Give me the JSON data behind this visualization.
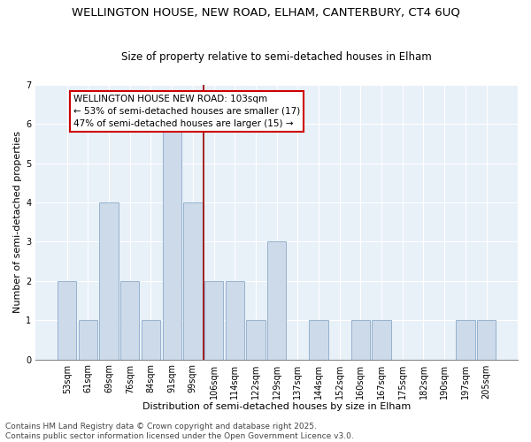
{
  "title_line1": "WELLINGTON HOUSE, NEW ROAD, ELHAM, CANTERBURY, CT4 6UQ",
  "title_line2": "Size of property relative to semi-detached houses in Elham",
  "xlabel": "Distribution of semi-detached houses by size in Elham",
  "ylabel": "Number of semi-detached properties",
  "categories": [
    "53sqm",
    "61sqm",
    "69sqm",
    "76sqm",
    "84sqm",
    "91sqm",
    "99sqm",
    "106sqm",
    "114sqm",
    "122sqm",
    "129sqm",
    "137sqm",
    "144sqm",
    "152sqm",
    "160sqm",
    "167sqm",
    "175sqm",
    "182sqm",
    "190sqm",
    "197sqm",
    "205sqm"
  ],
  "values": [
    2,
    1,
    4,
    2,
    1,
    6,
    4,
    2,
    2,
    1,
    3,
    0,
    1,
    0,
    1,
    1,
    0,
    0,
    0,
    1,
    1
  ],
  "bar_color": "#cddaea",
  "bar_edge_color": "#8baac8",
  "vline_x": 6.5,
  "vline_color": "#990000",
  "ylim": [
    0,
    7
  ],
  "yticks": [
    0,
    1,
    2,
    3,
    4,
    5,
    6,
    7
  ],
  "annotation_text": "WELLINGTON HOUSE NEW ROAD: 103sqm\n← 53% of semi-detached houses are smaller (17)\n47% of semi-detached houses are larger (15) →",
  "annotation_box_color": "#cc0000",
  "plot_bg_color": "#e8f0f8",
  "footnote": "Contains HM Land Registry data © Crown copyright and database right 2025.\nContains public sector information licensed under the Open Government Licence v3.0.",
  "title_fontsize": 9.5,
  "subtitle_fontsize": 8.5,
  "xlabel_fontsize": 8,
  "ylabel_fontsize": 8,
  "tick_fontsize": 7,
  "annotation_fontsize": 7.5,
  "footnote_fontsize": 6.5
}
